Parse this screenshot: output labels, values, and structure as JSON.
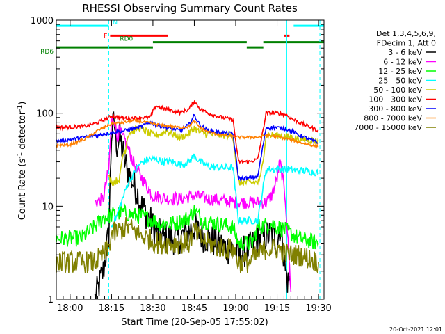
{
  "chart_data": {
    "type": "line",
    "title": "RHESSI Observing Summary Count Rates",
    "xlabel": "Start Time (20-Sep-05 17:55:02)",
    "ylabel": "Count Rate (s",
    "ylabel_sup": "-1",
    "ylabel_mid": " detector",
    "ylabel_end": ")",
    "yscale": "log",
    "xlim": [
      0,
      97
    ],
    "ylim": [
      1,
      1000
    ],
    "x_unit": "minutes after 17:55:02",
    "xticks": [
      {
        "x": 5,
        "label": "18:00"
      },
      {
        "x": 20,
        "label": "18:15"
      },
      {
        "x": 35,
        "label": "18:30"
      },
      {
        "x": 50,
        "label": "18:45"
      },
      {
        "x": 65,
        "label": "19:00"
      },
      {
        "x": 80,
        "label": "19:15"
      },
      {
        "x": 95,
        "label": "19:30"
      }
    ],
    "yticks": [
      {
        "y": 1,
        "label": "1"
      },
      {
        "y": 10,
        "label": "10"
      },
      {
        "y": 100,
        "label": "100"
      },
      {
        "y": 1000,
        "label": "1000"
      }
    ],
    "legend_header": [
      "Det 1,3,4,5,6,9,",
      "FDecim 1, Att 0"
    ],
    "legend_position": "right",
    "timestamp": "20-Oct-2021 12:01",
    "flags": [
      {
        "name": "N",
        "color": "#00ffff",
        "level": 870,
        "segments": [
          [
            0,
            19
          ],
          [
            86,
            97
          ]
        ]
      },
      {
        "name": "F",
        "color": "#ff0000",
        "level": 680,
        "segments": [
          [
            19.5,
            40.5
          ],
          [
            82.5,
            84.5
          ]
        ]
      },
      {
        "name": "RD0",
        "color": "#008000",
        "level": 580,
        "segments": [
          [
            35,
            69
          ],
          [
            75,
            97
          ]
        ]
      },
      {
        "name": "RD6",
        "color": "#008000",
        "level": 510,
        "segments": [
          [
            0,
            35
          ],
          [
            69,
            75
          ]
        ]
      }
    ],
    "vlines": [
      {
        "x": 0,
        "style": "solid",
        "color": "#00ffff"
      },
      {
        "x": 19,
        "style": "dashed",
        "color": "#00ffff"
      },
      {
        "x": 83.5,
        "style": "solid",
        "color": "#00ffff"
      },
      {
        "x": 95.5,
        "style": "dashed",
        "color": "#00ffff"
      }
    ],
    "series": [
      {
        "name": "3 - 6 keV",
        "color": "#000000",
        "points": [
          [
            14,
            1
          ],
          [
            17,
            2
          ],
          [
            19,
            5
          ],
          [
            20,
            60
          ],
          [
            21,
            80
          ],
          [
            22,
            45
          ],
          [
            23,
            55
          ],
          [
            24,
            40
          ],
          [
            25,
            28
          ],
          [
            27,
            20
          ],
          [
            29,
            15
          ],
          [
            31,
            10
          ],
          [
            33,
            8
          ],
          [
            35,
            6
          ],
          [
            37,
            5
          ],
          [
            39,
            4.5
          ],
          [
            41,
            4.5
          ],
          [
            44,
            4.5
          ],
          [
            47,
            5
          ],
          [
            50,
            6
          ],
          [
            52,
            5
          ],
          [
            55,
            4.5
          ],
          [
            58,
            4
          ],
          [
            62,
            3.5
          ],
          [
            64,
            3.5
          ],
          [
            66,
            3
          ],
          [
            70,
            3.5
          ],
          [
            74,
            4.5
          ],
          [
            78,
            5
          ],
          [
            80,
            4
          ],
          [
            81,
            6
          ],
          [
            82,
            4
          ],
          [
            83,
            2
          ],
          [
            84,
            1.5
          ],
          [
            84.5,
            1.8
          ]
        ]
      },
      {
        "name": "6 - 12 keV",
        "color": "#ff00ff",
        "points": [
          [
            14,
            11
          ],
          [
            17,
            12
          ],
          [
            19,
            25
          ],
          [
            20,
            80
          ],
          [
            21,
            90
          ],
          [
            22,
            55
          ],
          [
            23,
            65
          ],
          [
            24,
            55
          ],
          [
            25,
            50
          ],
          [
            27,
            35
          ],
          [
            29,
            25
          ],
          [
            31,
            20
          ],
          [
            33,
            16
          ],
          [
            35,
            13
          ],
          [
            40,
            12
          ],
          [
            45,
            12
          ],
          [
            50,
            13
          ],
          [
            55,
            12
          ],
          [
            60,
            11.5
          ],
          [
            65,
            11
          ],
          [
            69,
            11
          ],
          [
            72,
            11
          ],
          [
            76,
            11
          ],
          [
            78,
            13
          ],
          [
            80,
            20
          ],
          [
            81,
            30
          ],
          [
            82,
            20
          ],
          [
            83,
            12
          ],
          [
            84,
            4
          ],
          [
            85,
            1.2
          ]
        ]
      },
      {
        "name": "12 - 25 keV",
        "color": "#00ff00",
        "points": [
          [
            0,
            4.5
          ],
          [
            4,
            4.5
          ],
          [
            9,
            4.5
          ],
          [
            14,
            6
          ],
          [
            17,
            7.5
          ],
          [
            20,
            8
          ],
          [
            23,
            8.5
          ],
          [
            25,
            8.5
          ],
          [
            28,
            8
          ],
          [
            33,
            7.5
          ],
          [
            38,
            6.5
          ],
          [
            43,
            6.5
          ],
          [
            48,
            7.5
          ],
          [
            50,
            9
          ],
          [
            53,
            7
          ],
          [
            58,
            6.5
          ],
          [
            64,
            6
          ],
          [
            66,
            4
          ],
          [
            69,
            4
          ],
          [
            71,
            4
          ],
          [
            73,
            6
          ],
          [
            78,
            6.5
          ],
          [
            83,
            5.5
          ],
          [
            88,
            4.5
          ],
          [
            95,
            4
          ]
        ]
      },
      {
        "name": "25 - 50 keV",
        "color": "#00ffff",
        "points": [
          [
            20,
            6
          ],
          [
            22,
            8
          ],
          [
            24,
            12
          ],
          [
            26,
            18
          ],
          [
            28,
            22
          ],
          [
            30,
            28
          ],
          [
            33,
            32
          ],
          [
            36,
            32
          ],
          [
            39,
            30
          ],
          [
            42,
            30
          ],
          [
            45,
            28
          ],
          [
            48,
            30
          ],
          [
            50,
            35
          ],
          [
            52,
            30
          ],
          [
            55,
            27
          ],
          [
            58,
            26
          ],
          [
            62,
            26
          ],
          [
            64,
            26
          ],
          [
            66,
            7
          ],
          [
            70,
            7
          ],
          [
            73,
            7
          ],
          [
            76,
            25
          ],
          [
            80,
            25
          ],
          [
            84,
            25
          ],
          [
            87,
            24
          ],
          [
            90,
            24
          ],
          [
            95,
            23
          ]
        ]
      },
      {
        "name": "50 - 100 keV",
        "color": "#cccc00",
        "points": [
          [
            19,
            20
          ],
          [
            21,
            18
          ],
          [
            23,
            20
          ],
          [
            24,
            35
          ],
          [
            25,
            40
          ],
          [
            26,
            60
          ],
          [
            28,
            65
          ],
          [
            30,
            70
          ],
          [
            32,
            65
          ],
          [
            35,
            58
          ],
          [
            38,
            60
          ],
          [
            40,
            65
          ],
          [
            42,
            60
          ],
          [
            45,
            55
          ],
          [
            48,
            60
          ],
          [
            50,
            70
          ],
          [
            52,
            62
          ],
          [
            55,
            60
          ],
          [
            60,
            58
          ],
          [
            64,
            57
          ],
          [
            66,
            18
          ],
          [
            70,
            18
          ],
          [
            73,
            18
          ],
          [
            74,
            20
          ],
          [
            76,
            58
          ],
          [
            80,
            58
          ],
          [
            85,
            55
          ],
          [
            90,
            52
          ],
          [
            95,
            50
          ]
        ]
      },
      {
        "name": "100 - 300 keV",
        "color": "#ff0000",
        "points": [
          [
            0,
            70
          ],
          [
            5,
            71
          ],
          [
            10,
            72
          ],
          [
            14,
            77
          ],
          [
            17,
            84
          ],
          [
            20,
            93
          ],
          [
            23,
            90
          ],
          [
            26,
            88
          ],
          [
            30,
            90
          ],
          [
            34,
            90
          ],
          [
            36,
            120
          ],
          [
            40,
            110
          ],
          [
            45,
            102
          ],
          [
            48,
            110
          ],
          [
            50,
            135
          ],
          [
            52,
            112
          ],
          [
            55,
            100
          ],
          [
            60,
            90
          ],
          [
            64,
            85
          ],
          [
            66,
            30
          ],
          [
            70,
            30
          ],
          [
            73,
            32
          ],
          [
            76,
            100
          ],
          [
            80,
            100
          ],
          [
            83,
            97
          ],
          [
            86,
            85
          ],
          [
            90,
            75
          ],
          [
            95,
            65
          ]
        ]
      },
      {
        "name": "300 - 800 keV",
        "color": "#0000ff",
        "points": [
          [
            0,
            50
          ],
          [
            5,
            52
          ],
          [
            10,
            55
          ],
          [
            15,
            58
          ],
          [
            20,
            62
          ],
          [
            25,
            65
          ],
          [
            30,
            70
          ],
          [
            34,
            80
          ],
          [
            36,
            75
          ],
          [
            40,
            70
          ],
          [
            45,
            65
          ],
          [
            48,
            75
          ],
          [
            50,
            95
          ],
          [
            52,
            75
          ],
          [
            55,
            65
          ],
          [
            60,
            62
          ],
          [
            64,
            60
          ],
          [
            66,
            20
          ],
          [
            70,
            20
          ],
          [
            73,
            21
          ],
          [
            76,
            70
          ],
          [
            80,
            70
          ],
          [
            84,
            67
          ],
          [
            88,
            58
          ],
          [
            92,
            52
          ],
          [
            95,
            48
          ]
        ]
      },
      {
        "name": "800 - 7000 keV",
        "color": "#ff8000",
        "points": [
          [
            0,
            45
          ],
          [
            5,
            46
          ],
          [
            10,
            52
          ],
          [
            15,
            65
          ],
          [
            20,
            77
          ],
          [
            25,
            80
          ],
          [
            28,
            83
          ],
          [
            32,
            80
          ],
          [
            35,
            77
          ],
          [
            38,
            74
          ],
          [
            42,
            72
          ],
          [
            45,
            70
          ],
          [
            48,
            72
          ],
          [
            50,
            82
          ],
          [
            52,
            70
          ],
          [
            55,
            63
          ],
          [
            60,
            58
          ],
          [
            64,
            56
          ],
          [
            66,
            55
          ],
          [
            70,
            55
          ],
          [
            73,
            55
          ],
          [
            76,
            58
          ],
          [
            80,
            56
          ],
          [
            85,
            52
          ],
          [
            90,
            47
          ],
          [
            95,
            44
          ]
        ]
      },
      {
        "name": "7000 - 15000 keV",
        "color": "#808000",
        "points": [
          [
            0,
            2.5
          ],
          [
            5,
            2.5
          ],
          [
            10,
            2.5
          ],
          [
            14,
            2.5
          ],
          [
            17,
            3
          ],
          [
            19,
            3.5
          ],
          [
            20,
            5
          ],
          [
            23,
            5.5
          ],
          [
            26,
            6
          ],
          [
            28,
            5.5
          ],
          [
            30,
            5
          ],
          [
            33,
            4.5
          ],
          [
            37,
            4
          ],
          [
            40,
            4
          ],
          [
            45,
            4
          ],
          [
            48,
            4
          ],
          [
            50,
            5.5
          ],
          [
            52,
            4.5
          ],
          [
            55,
            4
          ],
          [
            60,
            3.5
          ],
          [
            64,
            3.5
          ],
          [
            66,
            2.5
          ],
          [
            70,
            2.5
          ],
          [
            73,
            3
          ],
          [
            76,
            3.5
          ],
          [
            80,
            3.5
          ],
          [
            84,
            3
          ],
          [
            88,
            3
          ],
          [
            95,
            2.5
          ]
        ]
      }
    ]
  }
}
